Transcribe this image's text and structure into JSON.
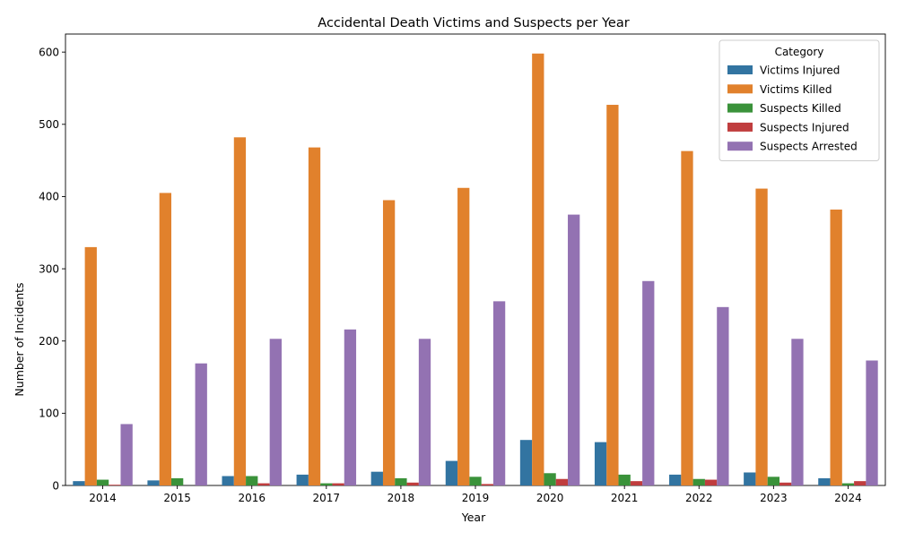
{
  "chart_data": {
    "type": "bar",
    "title": "Accidental Death Victims and Suspects per Year",
    "xlabel": "Year",
    "ylabel": "Number of Incidents",
    "ylim": [
      0,
      625
    ],
    "yticks": [
      0,
      100,
      200,
      300,
      400,
      500,
      600
    ],
    "grid": false,
    "legend": {
      "title": "Category",
      "placement": "top-right"
    },
    "categories": [
      "2014",
      "2015",
      "2016",
      "2017",
      "2018",
      "2019",
      "2020",
      "2021",
      "2022",
      "2023",
      "2024"
    ],
    "series": [
      {
        "name": "Victims Injured",
        "color": "#3274a1",
        "values": [
          6,
          7,
          13,
          15,
          19,
          34,
          63,
          60,
          15,
          18,
          10
        ]
      },
      {
        "name": "Victims Killed",
        "color": "#e1812c",
        "values": [
          330,
          405,
          482,
          468,
          395,
          412,
          598,
          527,
          463,
          411,
          382
        ]
      },
      {
        "name": "Suspects Killed",
        "color": "#3a923a",
        "values": [
          8,
          10,
          13,
          3,
          10,
          12,
          17,
          15,
          9,
          12,
          3
        ]
      },
      {
        "name": "Suspects Injured",
        "color": "#c03d3e",
        "values": [
          1,
          0,
          3,
          3,
          4,
          2,
          9,
          6,
          8,
          4,
          6
        ]
      },
      {
        "name": "Suspects Arrested",
        "color": "#9372b2",
        "values": [
          85,
          169,
          203,
          216,
          203,
          255,
          375,
          283,
          247,
          203,
          173
        ]
      }
    ]
  }
}
